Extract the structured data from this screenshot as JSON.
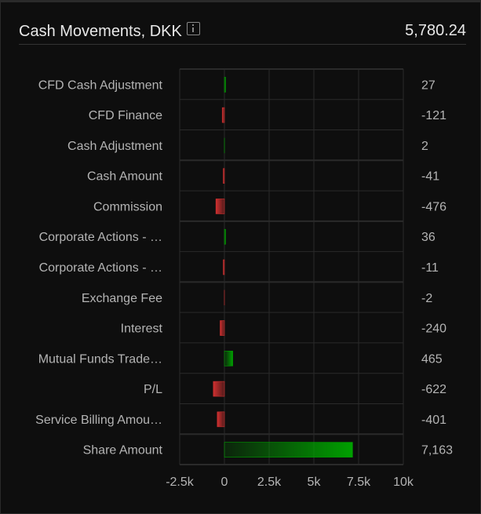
{
  "header": {
    "title": "Cash Movements, DKK",
    "total": "5,780.24",
    "info_icon": "info-icon"
  },
  "chart_data": {
    "type": "bar",
    "orientation": "horizontal",
    "categories": [
      "CFD Cash Adjustment",
      "CFD Finance",
      "Cash Adjustment",
      "Cash Amount",
      "Commission",
      "Corporate Actions - …",
      "Corporate Actions - …",
      "Exchange Fee",
      "Interest",
      "Mutual Funds Trade…",
      "P/L",
      "Service Billing Amou…",
      "Share Amount"
    ],
    "values": [
      27,
      -121,
      2,
      -41,
      -476,
      36,
      -11,
      -2,
      -240,
      465,
      -622,
      -401,
      7163
    ],
    "value_labels": [
      "27",
      "-121",
      "2",
      "-41",
      "-476",
      "36",
      "-11",
      "-2",
      "-240",
      "465",
      "-622",
      "-401",
      "7,163"
    ],
    "xlim": [
      -2500,
      10000
    ],
    "xticks": [
      -2500,
      0,
      2500,
      5000,
      7500,
      10000
    ],
    "xtick_labels": [
      "-2.5k",
      "0",
      "2.5k",
      "5k",
      "7.5k",
      "10k"
    ],
    "grid": true,
    "colors": {
      "positive": "#00a000",
      "negative": "#d03030"
    }
  }
}
